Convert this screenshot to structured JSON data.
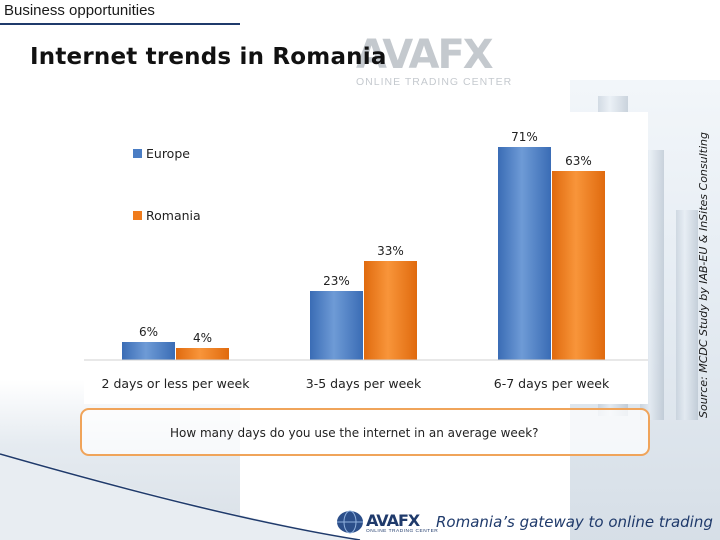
{
  "header": {
    "section": "Business opportunities",
    "title": "Internet trends in Romania"
  },
  "watermark": {
    "logo": "AVAFX",
    "tagline": "ONLINE TRADING CENTER"
  },
  "source": "Source: MCDC Study by IAB-EU & InSites Consulting",
  "question": "How many days do you use the internet in an average week?",
  "footer": {
    "logo": "AVAFX",
    "logo_sub": "ONLINE TRADING CENTER",
    "tagline": "Romania’s gateway to online trading"
  },
  "colors": {
    "europe": "#4a7dc4",
    "romania": "#f07c1c",
    "accent": "#1f3a6b",
    "question_border": "#f0a45a"
  },
  "chart_data": {
    "type": "bar",
    "title": "",
    "xlabel": "",
    "ylabel": "",
    "ylim": [
      0,
      80
    ],
    "categories": [
      "2 days or less per week",
      "3-5 days per week",
      "6-7 days per week"
    ],
    "series": [
      {
        "name": "Europe",
        "values": [
          6,
          23,
          71
        ],
        "labels": [
          "6%",
          "23%",
          "71%"
        ],
        "color": "#4a7dc4"
      },
      {
        "name": "Romania",
        "values": [
          4,
          33,
          63
        ],
        "labels": [
          "4%",
          "33%",
          "63%"
        ],
        "color": "#f07c1c"
      }
    ],
    "legend": "top-left",
    "grid": false
  }
}
